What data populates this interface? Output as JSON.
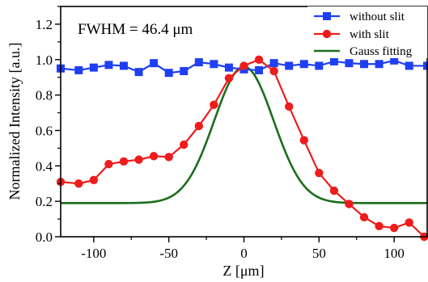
{
  "chart_data": {
    "type": "line",
    "xlabel": "Z [μm]",
    "ylabel": "Normalized Intensity [a.u.]",
    "xlim": [
      -122,
      122
    ],
    "ylim": [
      0.0,
      1.3
    ],
    "xticks": [
      -100,
      -50,
      0,
      50,
      100
    ],
    "yticks": [
      0.0,
      0.2,
      0.4,
      0.6,
      0.8,
      1.0,
      1.2
    ],
    "xtick_labels": [
      "-100",
      "-50",
      "0",
      "50",
      "100"
    ],
    "ytick_labels": [
      "0.0",
      "0.2",
      "0.4",
      "0.6",
      "0.8",
      "1.0",
      "1.2"
    ],
    "grid": false,
    "legend_position": "top-right",
    "annotation": "FWHM = 46.4 μm",
    "series": [
      {
        "name": "without slit",
        "color": "#1f3ff2",
        "marker": "square",
        "x": [
          -122,
          -110,
          -100,
          -90,
          -80,
          -70,
          -60,
          -50,
          -40,
          -30,
          -20,
          -10,
          0,
          10,
          20,
          30,
          40,
          50,
          60,
          70,
          80,
          90,
          100,
          110,
          122
        ],
        "y": [
          0.95,
          0.94,
          0.955,
          0.97,
          0.965,
          0.93,
          0.98,
          0.925,
          0.935,
          0.985,
          0.975,
          0.955,
          0.945,
          0.94,
          0.98,
          0.965,
          0.975,
          0.965,
          0.99,
          0.98,
          0.975,
          0.975,
          0.995,
          0.965,
          0.965
        ]
      },
      {
        "name": "with slit",
        "color": "#ee1c1c",
        "marker": "circle",
        "x": [
          -122,
          -110,
          -100,
          -90,
          -80,
          -70,
          -60,
          -50,
          -40,
          -30,
          -20,
          -10,
          0,
          10,
          20,
          30,
          40,
          50,
          60,
          70,
          80,
          90,
          100,
          110,
          120
        ],
        "y": [
          0.31,
          0.3,
          0.32,
          0.41,
          0.425,
          0.435,
          0.455,
          0.45,
          0.52,
          0.625,
          0.745,
          0.895,
          0.965,
          1.0,
          0.935,
          0.735,
          0.545,
          0.36,
          0.26,
          0.185,
          0.11,
          0.06,
          0.05,
          0.08,
          0.0
        ]
      },
      {
        "name": "Gauss fitting",
        "color": "#1c6e1c",
        "marker": "none",
        "offset": 0.19,
        "amplitude": 0.77,
        "center": 0,
        "fwhm": 46.4
      }
    ]
  }
}
